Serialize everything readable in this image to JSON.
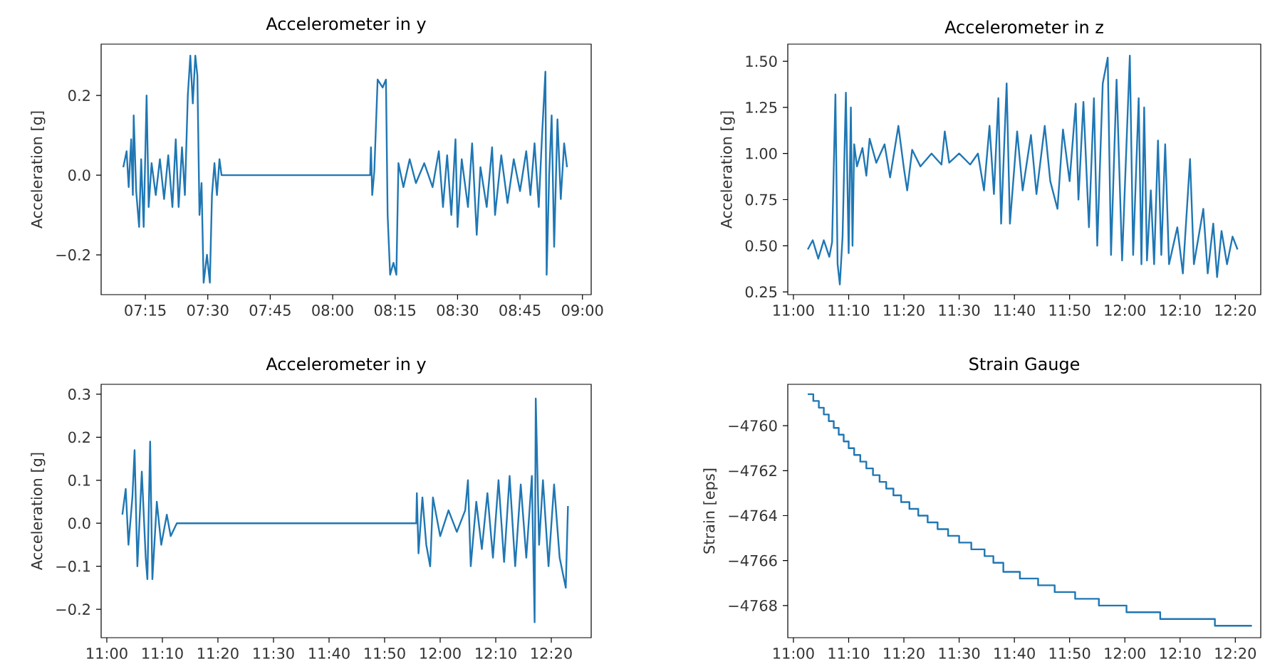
{
  "chart_data": [
    {
      "type": "line",
      "title": "Accelerometer in y",
      "ylabel": "Acceleration [g]",
      "color": "#1f77b4",
      "xlim": [
        7.073,
        9.035
      ],
      "ylim": [
        -0.3,
        0.329
      ],
      "xticks": [
        {
          "value": 7.25,
          "label": "07:15"
        },
        {
          "value": 7.5,
          "label": "07:30"
        },
        {
          "value": 7.75,
          "label": "07:45"
        },
        {
          "value": 8,
          "label": "08:00"
        },
        {
          "value": 8.25,
          "label": "08:15"
        },
        {
          "value": 8.5,
          "label": "08:30"
        },
        {
          "value": 8.75,
          "label": "08:45"
        },
        {
          "value": 9,
          "label": "09:00"
        }
      ],
      "yticks": [
        {
          "value": -0.2,
          "label": "−0.2"
        },
        {
          "value": 0,
          "label": "0.0"
        },
        {
          "value": 0.2,
          "label": "0.2"
        }
      ],
      "x": [
        7.1617,
        7.175,
        7.1833,
        7.1933,
        7.2,
        7.2033,
        7.2133,
        7.225,
        7.2333,
        7.2433,
        7.255,
        7.2633,
        7.275,
        7.2917,
        7.3083,
        7.325,
        7.3417,
        7.3583,
        7.3717,
        7.3833,
        7.3967,
        7.4083,
        7.42,
        7.43,
        7.44,
        7.45,
        7.4583,
        7.4667,
        7.475,
        7.4833,
        7.4967,
        7.5083,
        7.5167,
        7.5267,
        7.5367,
        7.5467,
        7.555,
        8.15,
        8.1533,
        8.1583,
        8.1667,
        8.18,
        8.2,
        8.2133,
        8.22,
        8.23,
        8.2433,
        8.255,
        8.2633,
        8.2833,
        8.3083,
        8.3333,
        8.3667,
        8.4,
        8.425,
        8.4417,
        8.4583,
        8.475,
        8.4917,
        8.5,
        8.5167,
        8.5417,
        8.5583,
        8.5767,
        8.5917,
        8.6167,
        8.6383,
        8.65,
        8.675,
        8.7,
        8.725,
        8.75,
        8.775,
        8.7917,
        8.8083,
        8.825,
        8.8383,
        8.8517,
        8.8567,
        8.8667,
        8.8767,
        8.8867,
        8.9,
        8.9133,
        8.9267,
        8.9383
      ],
      "values": [
        0.02,
        0.06,
        -0.03,
        0.09,
        -0.05,
        0.15,
        -0.04,
        -0.13,
        0.04,
        -0.13,
        0.2,
        -0.08,
        0.03,
        -0.05,
        0.04,
        -0.06,
        0.05,
        -0.08,
        0.09,
        -0.08,
        0.07,
        -0.05,
        0.2,
        0.3,
        0.18,
        0.3,
        0.25,
        -0.1,
        -0.02,
        -0.27,
        -0.2,
        -0.27,
        -0.05,
        0.03,
        -0.05,
        0.04,
        0.0,
        0.0,
        0.07,
        -0.05,
        0.01,
        0.24,
        0.22,
        0.24,
        -0.1,
        -0.25,
        -0.22,
        -0.25,
        0.03,
        -0.03,
        0.04,
        -0.02,
        0.03,
        -0.03,
        0.06,
        -0.08,
        0.05,
        -0.1,
        0.09,
        -0.13,
        0.04,
        -0.08,
        0.08,
        -0.15,
        0.02,
        -0.08,
        0.07,
        -0.1,
        0.05,
        -0.07,
        0.04,
        -0.04,
        0.06,
        -0.05,
        0.08,
        -0.08,
        0.1,
        0.26,
        -0.25,
        0.0,
        0.15,
        -0.18,
        0.14,
        -0.06,
        0.08,
        0.02
      ]
    },
    {
      "type": "line",
      "title": "Accelerometer in z",
      "ylabel": "Acceleration [g]",
      "color": "#1f77b4",
      "xlim": [
        10.983,
        12.41
      ],
      "ylim": [
        0.235,
        1.593
      ],
      "xticks": [
        {
          "value": 11,
          "label": "11:00"
        },
        {
          "value": 11.1667,
          "label": "11:10"
        },
        {
          "value": 11.3333,
          "label": "11:20"
        },
        {
          "value": 11.5,
          "label": "11:30"
        },
        {
          "value": 11.6667,
          "label": "11:40"
        },
        {
          "value": 11.8333,
          "label": "11:50"
        },
        {
          "value": 12,
          "label": "12:00"
        },
        {
          "value": 12.1667,
          "label": "12:10"
        },
        {
          "value": 12.3333,
          "label": "12:20"
        }
      ],
      "yticks": [
        {
          "value": 0.25,
          "label": "0.25"
        },
        {
          "value": 0.5,
          "label": "0.50"
        },
        {
          "value": 0.75,
          "label": "0.75"
        },
        {
          "value": 1,
          "label": "1.00"
        },
        {
          "value": 1.25,
          "label": "1.25"
        },
        {
          "value": 1.5,
          "label": "1.50"
        }
      ],
      "x": [
        11.0433,
        11.0583,
        11.075,
        11.0917,
        11.1083,
        11.1167,
        11.1267,
        11.1333,
        11.14,
        11.1483,
        11.1583,
        11.1667,
        11.1733,
        11.1783,
        11.1833,
        11.1917,
        11.2083,
        11.22,
        11.23,
        11.25,
        11.275,
        11.2917,
        11.3167,
        11.3333,
        11.3433,
        11.3583,
        11.3833,
        11.4167,
        11.4467,
        11.4567,
        11.47,
        11.5,
        11.5333,
        11.5567,
        11.575,
        11.5917,
        11.605,
        11.6183,
        11.6267,
        11.6433,
        11.6533,
        11.675,
        11.6917,
        11.7167,
        11.7333,
        11.7583,
        11.775,
        11.7967,
        11.8133,
        11.8333,
        11.8517,
        11.86,
        11.875,
        11.8917,
        11.9067,
        11.9167,
        11.9333,
        11.9483,
        11.9583,
        11.975,
        11.9917,
        12.015,
        12.025,
        12.0417,
        12.05,
        12.0583,
        12.0667,
        12.0783,
        12.0883,
        12.1,
        12.11,
        12.1217,
        12.1333,
        12.1583,
        12.175,
        12.1967,
        12.2083,
        12.2367,
        12.25,
        12.2667,
        12.2783,
        12.2917,
        12.3083,
        12.325,
        12.34
      ],
      "values": [
        0.48,
        0.53,
        0.43,
        0.53,
        0.44,
        0.52,
        1.32,
        0.4,
        0.29,
        0.55,
        1.33,
        0.46,
        1.25,
        0.5,
        1.05,
        0.93,
        1.03,
        0.88,
        1.08,
        0.95,
        1.05,
        0.87,
        1.15,
        0.92,
        0.8,
        1.02,
        0.93,
        1.0,
        0.94,
        1.12,
        0.95,
        1.0,
        0.94,
        1.0,
        0.8,
        1.15,
        0.78,
        1.3,
        0.62,
        1.38,
        0.62,
        1.12,
        0.8,
        1.1,
        0.78,
        1.15,
        0.85,
        0.7,
        1.13,
        0.85,
        1.27,
        0.75,
        1.28,
        0.6,
        1.3,
        0.5,
        1.38,
        1.52,
        0.45,
        1.4,
        0.42,
        1.53,
        0.45,
        1.3,
        0.4,
        1.25,
        0.42,
        0.8,
        0.4,
        1.07,
        0.45,
        1.05,
        0.4,
        0.6,
        0.35,
        0.97,
        0.4,
        0.7,
        0.35,
        0.62,
        0.33,
        0.58,
        0.4,
        0.55,
        0.48
      ]
    },
    {
      "type": "line",
      "title": "Accelerometer in y",
      "ylabel": "Acceleration [g]",
      "color": "#1f77b4",
      "xlim": [
        10.983,
        12.453
      ],
      "ylim": [
        -0.266,
        0.323
      ],
      "xticks": [
        {
          "value": 11,
          "label": "11:00"
        },
        {
          "value": 11.1667,
          "label": "11:10"
        },
        {
          "value": 11.3333,
          "label": "11:20"
        },
        {
          "value": 11.5,
          "label": "11:30"
        },
        {
          "value": 11.6667,
          "label": "11:40"
        },
        {
          "value": 11.8333,
          "label": "11:50"
        },
        {
          "value": 12,
          "label": "12:00"
        },
        {
          "value": 12.1667,
          "label": "12:10"
        },
        {
          "value": 12.3333,
          "label": "12:20"
        }
      ],
      "yticks": [
        {
          "value": -0.2,
          "label": "−0.2"
        },
        {
          "value": -0.1,
          "label": "−0.1"
        },
        {
          "value": 0,
          "label": "0.0"
        },
        {
          "value": 0.1,
          "label": "0.1"
        },
        {
          "value": 0.2,
          "label": "0.2"
        },
        {
          "value": 0.3,
          "label": "0.3"
        }
      ],
      "x": [
        11.0467,
        11.0567,
        11.065,
        11.0767,
        11.0833,
        11.0917,
        11.105,
        11.1167,
        11.1217,
        11.13,
        11.1367,
        11.15,
        11.1633,
        11.18,
        11.1917,
        11.21,
        11.9283,
        11.93,
        11.935,
        11.9467,
        11.9583,
        11.97,
        11.9783,
        12.0,
        12.025,
        12.05,
        12.075,
        12.0833,
        12.0917,
        12.1083,
        12.125,
        12.1417,
        12.1583,
        12.175,
        12.1917,
        12.2083,
        12.225,
        12.2417,
        12.2583,
        12.275,
        12.2833,
        12.2867,
        12.2967,
        12.3083,
        12.325,
        12.3417,
        12.3583,
        12.3767,
        12.3833
      ],
      "values": [
        0.02,
        0.08,
        -0.05,
        0.06,
        0.17,
        -0.1,
        0.12,
        -0.08,
        -0.13,
        0.19,
        -0.13,
        0.05,
        -0.05,
        0.02,
        -0.03,
        0.0,
        0.0,
        0.07,
        -0.07,
        0.06,
        -0.05,
        -0.1,
        0.06,
        -0.03,
        0.03,
        -0.02,
        0.03,
        0.1,
        -0.1,
        0.05,
        -0.06,
        0.07,
        -0.08,
        0.1,
        -0.09,
        0.11,
        -0.1,
        0.09,
        -0.08,
        0.11,
        -0.23,
        0.29,
        -0.05,
        0.1,
        -0.1,
        0.09,
        -0.08,
        -0.15,
        0.04
      ]
    },
    {
      "type": "step",
      "title": "Strain Gauge",
      "ylabel": "Strain [eps]",
      "color": "#1f77b4",
      "xlim": [
        10.983,
        12.41
      ],
      "ylim": [
        -4769.43,
        -4758.16
      ],
      "xticks": [
        {
          "value": 11,
          "label": "11:00"
        },
        {
          "value": 11.1667,
          "label": "11:10"
        },
        {
          "value": 11.3333,
          "label": "11:20"
        },
        {
          "value": 11.5,
          "label": "11:30"
        },
        {
          "value": 11.6667,
          "label": "11:40"
        },
        {
          "value": 11.8333,
          "label": "11:50"
        },
        {
          "value": 12,
          "label": "12:00"
        },
        {
          "value": 12.1667,
          "label": "12:10"
        },
        {
          "value": 12.3333,
          "label": "12:20"
        }
      ],
      "yticks": [
        {
          "value": -4768,
          "label": "−4768"
        },
        {
          "value": -4766,
          "label": "−4766"
        },
        {
          "value": -4764,
          "label": "−4764"
        },
        {
          "value": -4762,
          "label": "−4762"
        },
        {
          "value": -4760,
          "label": "−4760"
        }
      ],
      "x": [
        11.0433,
        11.06,
        11.0767,
        11.0917,
        11.1067,
        11.1217,
        11.1367,
        11.1517,
        11.1667,
        11.1833,
        11.2017,
        11.22,
        11.24,
        11.26,
        11.28,
        11.3017,
        11.325,
        11.35,
        11.3767,
        11.405,
        11.435,
        11.4667,
        11.5,
        11.5367,
        11.5767,
        11.6033,
        11.6333,
        11.6833,
        11.7383,
        11.7883,
        11.85,
        11.9217,
        12.005,
        12.1067,
        12.2717,
        12.3833
      ],
      "values": [
        -4758.6,
        -4758.9,
        -4759.2,
        -4759.5,
        -4759.8,
        -4760.1,
        -4760.4,
        -4760.7,
        -4761.0,
        -4761.3,
        -4761.6,
        -4761.9,
        -4762.2,
        -4762.5,
        -4762.8,
        -4763.1,
        -4763.4,
        -4763.7,
        -4764.0,
        -4764.3,
        -4764.6,
        -4764.9,
        -4765.2,
        -4765.5,
        -4765.8,
        -4766.1,
        -4766.5,
        -4766.8,
        -4767.1,
        -4767.4,
        -4767.7,
        -4768.0,
        -4768.3,
        -4768.6,
        -4768.9,
        -4768.9
      ]
    }
  ]
}
